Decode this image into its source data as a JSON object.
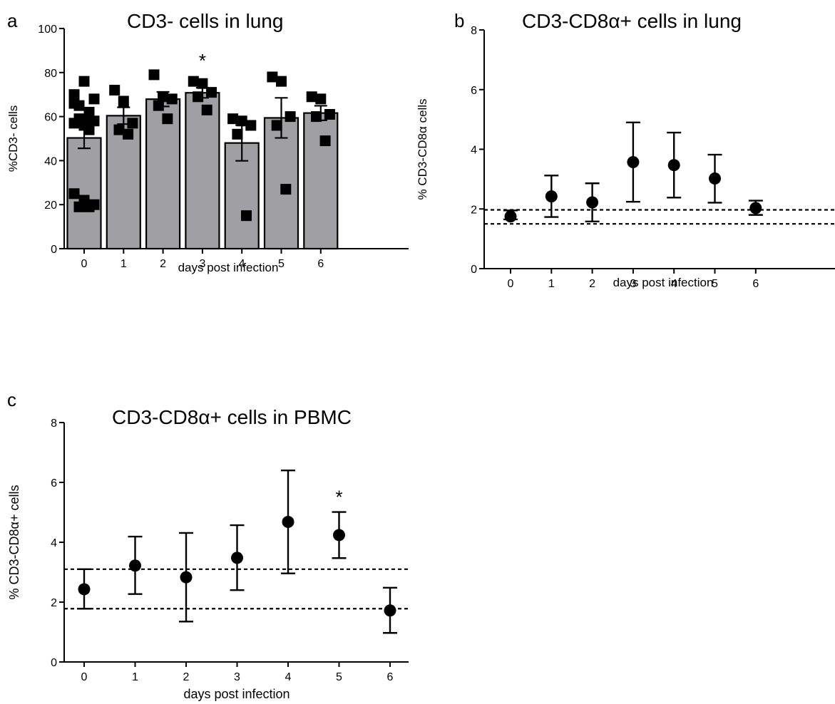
{
  "figure": {
    "panel_letters": [
      "a",
      "b",
      "c"
    ]
  },
  "chart_data": [
    {
      "panel": "a",
      "type": "bar",
      "title": "CD3- cells in lung",
      "xlabel": "days post infection",
      "ylabel": "%CD3- cells",
      "categories": [
        "0",
        "1",
        "2",
        "3",
        "4",
        "5",
        "6"
      ],
      "ylim": [
        0,
        100
      ],
      "yticks": [
        0,
        20,
        40,
        60,
        80,
        100
      ],
      "grid": false,
      "bar_color": "#a0a0a4",
      "means": [
        50.3,
        60.4,
        67.9,
        70.8,
        48.0,
        59.4,
        61.6
      ],
      "sem": [
        4.7,
        3.8,
        3.3,
        2.3,
        8.1,
        9.1,
        3.3
      ],
      "points": [
        [
          70.0,
          76.0,
          68.0,
          65.0,
          62.0,
          66.0,
          60.0,
          59.0,
          58.0,
          56.0,
          57.0,
          54.0,
          25.0,
          22.0,
          20.0,
          19.0,
          19.0
        ],
        [
          72.0,
          67.0,
          57.0,
          54.0,
          52.0
        ],
        [
          79.0,
          69.0,
          68.0,
          65.0,
          59.0
        ],
        [
          76.0,
          75.0,
          71.0,
          69.0,
          63.0
        ],
        [
          59.0,
          58.0,
          56.0,
          52.0,
          15.0
        ],
        [
          78.0,
          76.0,
          60.0,
          56.0,
          27.0
        ],
        [
          69.0,
          68.0,
          61.0,
          60.0,
          49.0
        ]
      ],
      "annotations": [
        {
          "category": "3",
          "text": "*"
        }
      ]
    },
    {
      "panel": "b",
      "type": "scatter",
      "title": "CD3-CD8α+ cells in lung",
      "xlabel": "days post infection",
      "ylabel": "% CD3-CD8α cells",
      "categories": [
        "0",
        "1",
        "2",
        "3",
        "4",
        "5",
        "6"
      ],
      "ylim": [
        0,
        8
      ],
      "yticks": [
        0,
        2,
        4,
        6,
        8
      ],
      "grid": false,
      "means": [
        1.75,
        2.42,
        2.22,
        3.57,
        3.47,
        3.02,
        2.03
      ],
      "err_upper": [
        1.95,
        3.12,
        2.86,
        4.9,
        4.56,
        3.82,
        2.28
      ],
      "err_lower": [
        1.65,
        1.73,
        1.58,
        2.24,
        2.38,
        2.21,
        1.8
      ],
      "reference_lines": [
        1.97,
        1.5
      ],
      "annotations": []
    },
    {
      "panel": "c",
      "type": "scatter",
      "title": "CD3-CD8α+ cells in PBMC",
      "xlabel": "days post infection",
      "ylabel": "% CD3-CD8α+ cells",
      "categories": [
        "0",
        "1",
        "2",
        "3",
        "4",
        "5",
        "6"
      ],
      "ylim": [
        0,
        8
      ],
      "yticks": [
        0,
        2,
        4,
        6,
        8
      ],
      "grid": false,
      "means": [
        2.43,
        3.22,
        2.83,
        3.48,
        4.68,
        4.24,
        1.72
      ],
      "err_upper": [
        3.1,
        4.19,
        4.31,
        4.57,
        6.4,
        5.01,
        2.48
      ],
      "err_lower": [
        1.78,
        2.27,
        1.35,
        2.4,
        2.96,
        3.47,
        0.97
      ],
      "reference_lines": [
        3.1,
        1.78
      ],
      "annotations": [
        {
          "category": "5",
          "text": "*"
        }
      ]
    }
  ]
}
